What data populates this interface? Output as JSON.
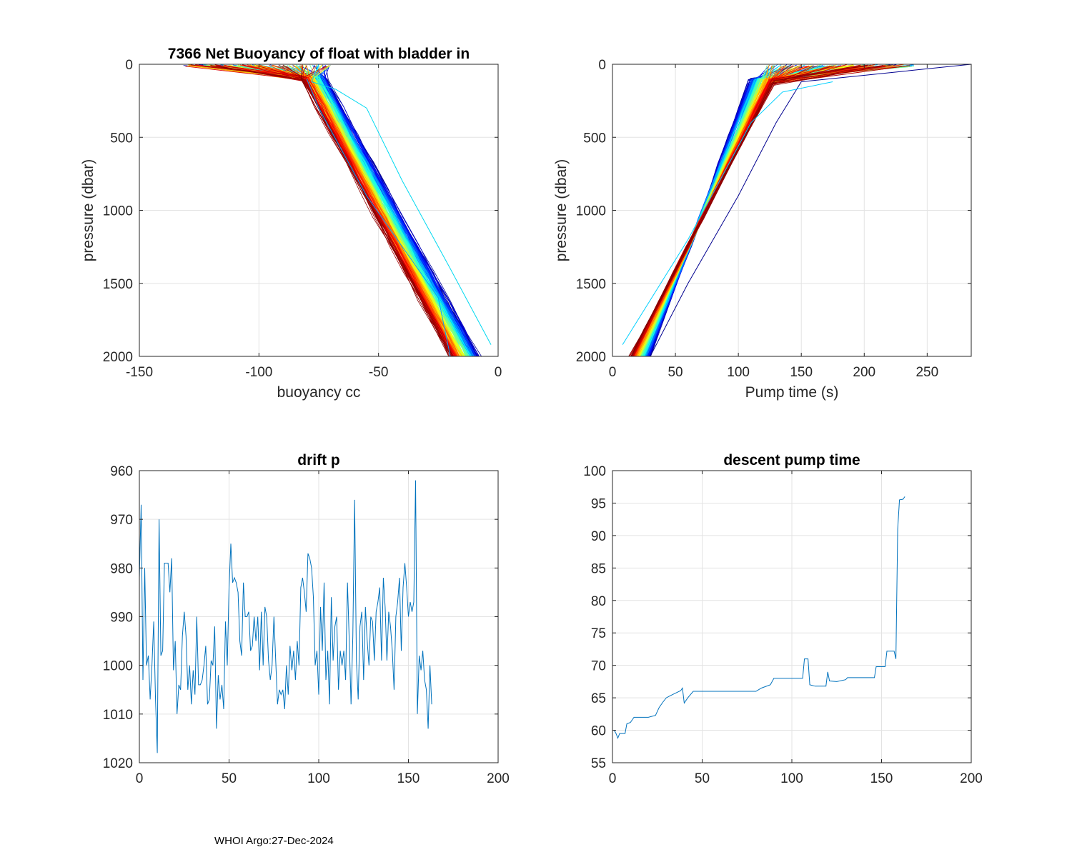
{
  "footer": "WHOI Argo:27-Dec-2024",
  "chart_data": [
    {
      "id": "buoyancy",
      "type": "line",
      "title": "7366 Net Buoyancy of float with bladder in",
      "xlabel": "buoyancy cc",
      "ylabel": "pressure (dbar)",
      "xlim": [
        -150,
        0
      ],
      "ylim": [
        0,
        2000
      ],
      "y_reversed": true,
      "xticks": [
        -150,
        -100,
        -50,
        0
      ],
      "xtick_labels": [
        "-150",
        "-100",
        "-50",
        "0"
      ],
      "yticks": [
        0,
        500,
        1000,
        1500,
        2000
      ],
      "ytick_labels": [
        "0",
        "500",
        "1000",
        "1500",
        "2000"
      ],
      "grid": true,
      "colormap": "jet",
      "profile_bundle": {
        "count": 164,
        "surface_x_range": [
          -132,
          -70
        ],
        "knee_pressure": 100,
        "knee_x_range": [
          -82,
          -72
        ],
        "bottom_x_range": [
          -20,
          -8
        ],
        "bottom_pressure": 2000
      },
      "outliers": [
        {
          "name": "cyan-outlier",
          "color": "#00d8f0",
          "points": [
            [
              -75,
              0
            ],
            [
              -78,
              120
            ],
            [
              -68,
              170
            ],
            [
              -55,
              300
            ],
            [
              -40,
              800
            ],
            [
              -20,
              1400
            ],
            [
              -3,
              1920
            ]
          ]
        },
        {
          "name": "blue-outlier",
          "color": "#00a0ff",
          "points": [
            [
              -80,
              100
            ],
            [
              -75,
              300
            ],
            [
              -55,
              900
            ],
            [
              -25,
              1600
            ],
            [
              -20,
              2000
            ]
          ]
        }
      ]
    },
    {
      "id": "pump_time",
      "type": "line",
      "title": "",
      "xlabel": "Pump time (s)",
      "ylabel": "pressure (dbar)",
      "xlim": [
        0,
        285
      ],
      "ylim": [
        0,
        2000
      ],
      "y_reversed": true,
      "xticks": [
        0,
        50,
        100,
        150,
        200,
        250
      ],
      "xtick_labels": [
        "0",
        "50",
        "100",
        "150",
        "200",
        "250"
      ],
      "yticks": [
        0,
        500,
        1000,
        1500,
        2000
      ],
      "ytick_labels": [
        "0",
        "500",
        "1000",
        "1500",
        "2000"
      ],
      "grid": true,
      "colormap": "jet",
      "profile_bundle": {
        "count": 164,
        "knee_pressure": 120,
        "knee_x_range": [
          108,
          128
        ],
        "surface_x_range": [
          120,
          240
        ],
        "bottom_x_range": [
          14,
          30
        ],
        "bottom_pressure": 2000
      },
      "outliers": [
        {
          "name": "dark-blue-group",
          "color": "#00008f",
          "points": [
            [
              285,
              0
            ],
            [
              150,
              120
            ],
            [
              130,
              400
            ],
            [
              100,
              900
            ],
            [
              60,
              1500
            ],
            [
              30,
              2000
            ]
          ]
        },
        {
          "name": "cyan-outlier",
          "color": "#00d0ff",
          "points": [
            [
              175,
              120
            ],
            [
              135,
              190
            ],
            [
              110,
              400
            ],
            [
              60,
              1200
            ],
            [
              8,
              1920
            ]
          ]
        }
      ]
    },
    {
      "id": "drift_p",
      "type": "line",
      "title": "drift p",
      "xlabel": "",
      "ylabel": "",
      "xlim": [
        0,
        200
      ],
      "ylim": [
        960,
        1020
      ],
      "y_reversed": true,
      "xticks": [
        0,
        50,
        100,
        150,
        200
      ],
      "xtick_labels": [
        "0",
        "50",
        "100",
        "150",
        "200"
      ],
      "yticks": [
        960,
        970,
        980,
        990,
        1000,
        1010,
        1020
      ],
      "ytick_labels": [
        "960",
        "970",
        "980",
        "990",
        "1000",
        "1010",
        "1020"
      ],
      "grid": true,
      "color": "#0072bd",
      "values": [
        982,
        967,
        1003,
        980,
        1000,
        998,
        1007,
        1000,
        991,
        1007,
        1018,
        970,
        998,
        997,
        979,
        979,
        979,
        985,
        978,
        1001,
        995,
        1010,
        1004,
        1005,
        994,
        989,
        994,
        1005,
        1000,
        1008,
        1001,
        1006,
        990,
        1004,
        1004,
        1003,
        1000,
        996,
        1008,
        1007,
        999,
        1000,
        992,
        1013,
        1002,
        1007,
        1004,
        1009,
        991,
        1000,
        984,
        975,
        983,
        982,
        983,
        985,
        995,
        998,
        983,
        990,
        990,
        989,
        997,
        996,
        990,
        995,
        990,
        1001,
        989,
        1000,
        988,
        990,
        999,
        1003,
        1000,
        990,
        999,
        1008,
        1005,
        1006,
        1005,
        1009,
        1000,
        1006,
        996,
        1001,
        997,
        1003,
        995,
        1000,
        984,
        982,
        985,
        989,
        977,
        978,
        980,
        986,
        1000,
        997,
        1006,
        988,
        997,
        983,
        1003,
        997,
        1008,
        986,
        999,
        992,
        990,
        1005,
        997,
        1000,
        997,
        1003,
        983,
        995,
        1008,
        994,
        966,
        999,
        1007,
        992,
        989,
        1003,
        988,
        995,
        1000,
        990,
        991,
        999,
        989,
        987,
        984,
        999,
        982,
        988,
        999,
        989,
        992,
        997,
        1005,
        990,
        987,
        982,
        997,
        984,
        979,
        984,
        990,
        987,
        989,
        987,
        962,
        1010,
        998,
        1001,
        997,
        1003,
        1005,
        1013,
        1000,
        1008
      ],
      "x_step": 1
    },
    {
      "id": "descent_pump",
      "type": "line",
      "title": "descent pump time",
      "xlabel": "",
      "ylabel": "",
      "xlim": [
        0,
        200
      ],
      "ylim": [
        55,
        100
      ],
      "y_reversed": false,
      "xticks": [
        0,
        50,
        100,
        150,
        200
      ],
      "xtick_labels": [
        "0",
        "50",
        "100",
        "150",
        "200"
      ],
      "yticks": [
        55,
        60,
        65,
        70,
        75,
        80,
        85,
        90,
        95,
        100
      ],
      "ytick_labels": [
        "55",
        "60",
        "65",
        "70",
        "75",
        "80",
        "85",
        "90",
        "95",
        "100"
      ],
      "grid": true,
      "color": "#0072bd",
      "points": [
        [
          1,
          60
        ],
        [
          2,
          59.5
        ],
        [
          3,
          58.8
        ],
        [
          4,
          59.5
        ],
        [
          5,
          59.5
        ],
        [
          7,
          59.5
        ],
        [
          8,
          61
        ],
        [
          10,
          61.2
        ],
        [
          12,
          62
        ],
        [
          15,
          62
        ],
        [
          20,
          62
        ],
        [
          24,
          62.3
        ],
        [
          26,
          63.5
        ],
        [
          28,
          64.3
        ],
        [
          30,
          65
        ],
        [
          32,
          65.3
        ],
        [
          35,
          65.7
        ],
        [
          38,
          66.1
        ],
        [
          39,
          66.5
        ],
        [
          40,
          64.2
        ],
        [
          42,
          65
        ],
        [
          45,
          66
        ],
        [
          50,
          66
        ],
        [
          60,
          66
        ],
        [
          70,
          66
        ],
        [
          80,
          66
        ],
        [
          83,
          66.5
        ],
        [
          88,
          67
        ],
        [
          90,
          68
        ],
        [
          95,
          68
        ],
        [
          100,
          68
        ],
        [
          106,
          68
        ],
        [
          107,
          71
        ],
        [
          109,
          71
        ],
        [
          110,
          67
        ],
        [
          113,
          66.8
        ],
        [
          116,
          66.8
        ],
        [
          119,
          66.8
        ],
        [
          120,
          69
        ],
        [
          121,
          67.6
        ],
        [
          125,
          67.5
        ],
        [
          130,
          67.8
        ],
        [
          131,
          68.1
        ],
        [
          140,
          68.1
        ],
        [
          146,
          68.1
        ],
        [
          147,
          69.8
        ],
        [
          152,
          69.8
        ],
        [
          153,
          72.2
        ],
        [
          157,
          72.2
        ],
        [
          158,
          71
        ],
        [
          159,
          91
        ],
        [
          160,
          95.5
        ],
        [
          162,
          95.6
        ],
        [
          163,
          96
        ]
      ]
    }
  ]
}
